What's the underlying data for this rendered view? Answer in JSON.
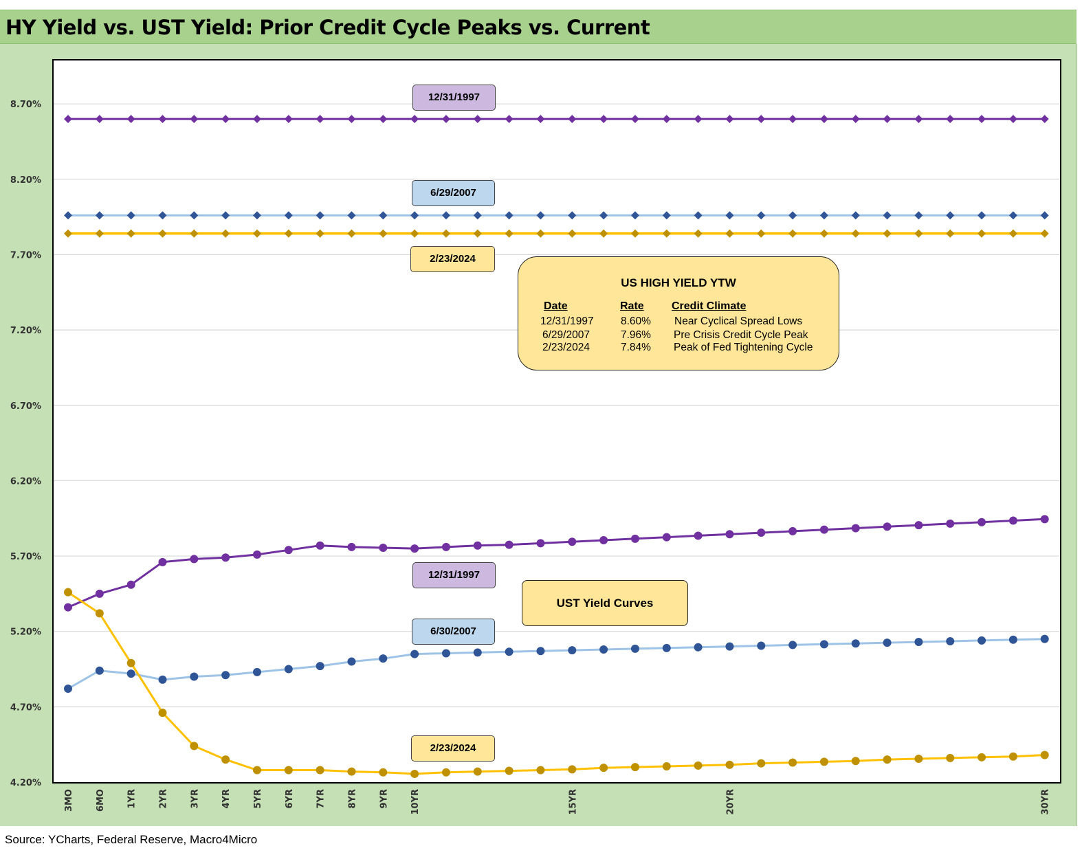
{
  "title": "HY Yield vs. UST Yield: Prior Credit Cycle Peaks vs. Current",
  "source": "Source: YCharts, Federal Reserve, Macro4Micro",
  "colors": {
    "purple": "#7030a0",
    "light_blue": "#9dc3e6",
    "dark_blue": "#2f5597",
    "gold": "#ffc000",
    "gold_marker": "#bf9000",
    "lavender": "#cdb9e0",
    "sky": "#bdd7ee",
    "yellow": "#ffe699"
  },
  "chart_data": {
    "type": "line",
    "x": [
      "3MO",
      "6MO",
      "1YR",
      "2YR",
      "3YR",
      "4YR",
      "5YR",
      "6YR",
      "7YR",
      "8YR",
      "9YR",
      "10YR",
      "11YR",
      "12YR",
      "13YR",
      "14YR",
      "15YR",
      "16YR",
      "17YR",
      "18YR",
      "19YR",
      "20YR",
      "21YR",
      "22YR",
      "23YR",
      "24YR",
      "25YR",
      "26YR",
      "27YR",
      "28YR",
      "29YR",
      "30YR"
    ],
    "x_tick_labels": [
      "3MO",
      "6MO",
      "1YR",
      "2YR",
      "3YR",
      "4YR",
      "5YR",
      "6YR",
      "7YR",
      "8YR",
      "9YR",
      "10YR",
      "",
      "",
      "",
      "",
      "15YR",
      "",
      "",
      "",
      "",
      "20YR",
      "",
      "",
      "",
      "",
      "",
      "",
      "",
      "",
      "",
      "30YR"
    ],
    "y_tick_labels": [
      "4.20%",
      "4.70%",
      "5.20%",
      "5.70%",
      "6.20%",
      "6.70%",
      "7.20%",
      "7.70%",
      "8.20%",
      "8.70%"
    ],
    "ylim": [
      4.2,
      8.7
    ],
    "series": [
      {
        "name": "12/31/1997",
        "group": "hy",
        "values": [
          8.6,
          8.6,
          8.6,
          8.6,
          8.6,
          8.6,
          8.6,
          8.6,
          8.6,
          8.6,
          8.6,
          8.6,
          8.6,
          8.6,
          8.6,
          8.6,
          8.6,
          8.6,
          8.6,
          8.6,
          8.6,
          8.6,
          8.6,
          8.6,
          8.6,
          8.6,
          8.6,
          8.6,
          8.6,
          8.6,
          8.6,
          8.6
        ]
      },
      {
        "name": "6/29/2007",
        "group": "hy",
        "values": [
          7.96,
          7.96,
          7.96,
          7.96,
          7.96,
          7.96,
          7.96,
          7.96,
          7.96,
          7.96,
          7.96,
          7.96,
          7.96,
          7.96,
          7.96,
          7.96,
          7.96,
          7.96,
          7.96,
          7.96,
          7.96,
          7.96,
          7.96,
          7.96,
          7.96,
          7.96,
          7.96,
          7.96,
          7.96,
          7.96,
          7.96,
          7.96
        ]
      },
      {
        "name": "2/23/2024",
        "group": "hy",
        "values": [
          7.84,
          7.84,
          7.84,
          7.84,
          7.84,
          7.84,
          7.84,
          7.84,
          7.84,
          7.84,
          7.84,
          7.84,
          7.84,
          7.84,
          7.84,
          7.84,
          7.84,
          7.84,
          7.84,
          7.84,
          7.84,
          7.84,
          7.84,
          7.84,
          7.84,
          7.84,
          7.84,
          7.84,
          7.84,
          7.84,
          7.84,
          7.84
        ]
      },
      {
        "name": "12/31/1997",
        "group": "ust",
        "values": [
          5.36,
          5.45,
          5.51,
          5.66,
          5.68,
          5.69,
          5.71,
          5.74,
          5.77,
          5.76,
          5.755,
          5.75,
          5.76,
          5.77,
          5.775,
          5.785,
          5.795,
          5.805,
          5.815,
          5.825,
          5.835,
          5.845,
          5.855,
          5.865,
          5.875,
          5.885,
          5.895,
          5.905,
          5.915,
          5.925,
          5.935,
          5.945
        ]
      },
      {
        "name": "6/30/2007",
        "group": "ust",
        "values": [
          4.82,
          4.94,
          4.92,
          4.88,
          4.9,
          4.91,
          4.93,
          4.95,
          4.97,
          5.0,
          5.02,
          5.05,
          5.055,
          5.06,
          5.065,
          5.07,
          5.075,
          5.08,
          5.085,
          5.09,
          5.095,
          5.1,
          5.105,
          5.11,
          5.115,
          5.12,
          5.125,
          5.13,
          5.135,
          5.14,
          5.145,
          5.15
        ]
      },
      {
        "name": "2/23/2024",
        "group": "ust",
        "values": [
          5.46,
          5.32,
          4.99,
          4.66,
          4.44,
          4.35,
          4.28,
          4.28,
          4.28,
          4.27,
          4.265,
          4.255,
          4.265,
          4.27,
          4.275,
          4.28,
          4.285,
          4.295,
          4.3,
          4.305,
          4.31,
          4.315,
          4.325,
          4.33,
          4.335,
          4.34,
          4.35,
          4.355,
          4.36,
          4.365,
          4.37,
          4.38
        ]
      }
    ]
  },
  "series_labels": {
    "hy_1997": "12/31/1997",
    "hy_2007": "6/29/2007",
    "hy_2024": "2/23/2024",
    "ust_1997": "12/31/1997",
    "ust_2007": "6/30/2007",
    "ust_2024": "2/23/2024"
  },
  "ytw_box": {
    "title": "US HIGH YIELD YTW",
    "headers": {
      "date": "Date",
      "rate": "Rate",
      "climate": "Credit Climate"
    },
    "rows": [
      {
        "date": "12/31/1997",
        "rate": "8.60%",
        "climate": "Near Cyclical Spread Lows"
      },
      {
        "date": "6/29/2007",
        "rate": "7.96%",
        "climate": "Pre Crisis Credit Cycle Peak"
      },
      {
        "date": "2/23/2024",
        "rate": "7.84%",
        "climate": "Peak of Fed Tightening Cycle"
      }
    ]
  },
  "ust_box": {
    "label": "UST Yield Curves"
  }
}
